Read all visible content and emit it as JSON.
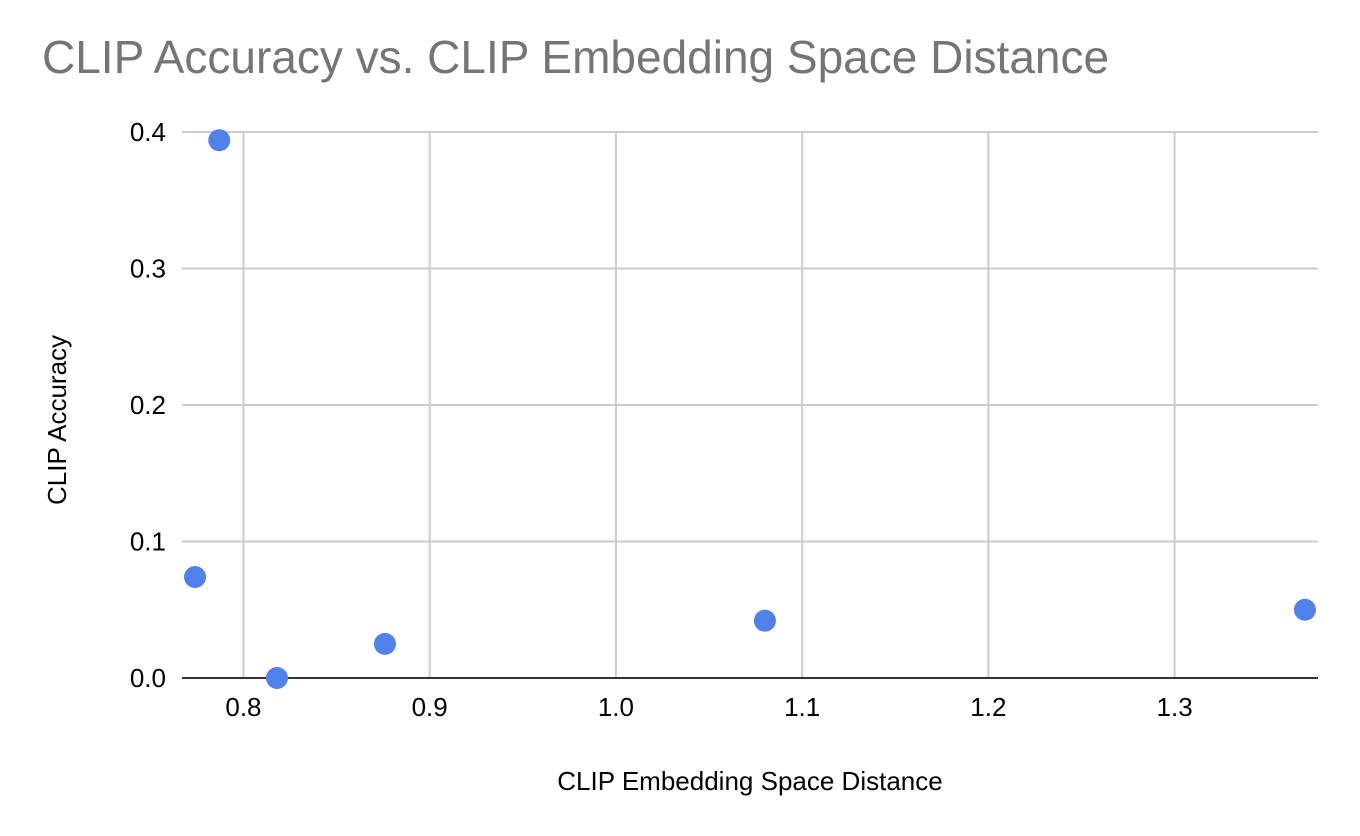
{
  "chart_data": {
    "type": "scatter",
    "title": "CLIP Accuracy vs. CLIP Embedding Space Distance",
    "xlabel": "CLIP Embedding Space Distance",
    "ylabel": "CLIP Accuracy",
    "xlim": [
      0.767,
      1.377
    ],
    "ylim": [
      0,
      0.4
    ],
    "xticks": [
      "0.8",
      "0.9",
      "1.0",
      "1.1",
      "1.2",
      "1.3"
    ],
    "yticks": [
      "0.0",
      "0.1",
      "0.2",
      "0.3",
      "0.4"
    ],
    "grid": true,
    "legend": "none",
    "series": [
      {
        "points": [
          {
            "x": 0.774,
            "y": 0.074
          },
          {
            "x": 0.787,
            "y": 0.394
          },
          {
            "x": 0.818,
            "y": 0.0
          },
          {
            "x": 0.876,
            "y": 0.025
          },
          {
            "x": 1.08,
            "y": 0.042
          },
          {
            "x": 1.37,
            "y": 0.05
          }
        ],
        "color": "#4f81e8"
      }
    ]
  }
}
